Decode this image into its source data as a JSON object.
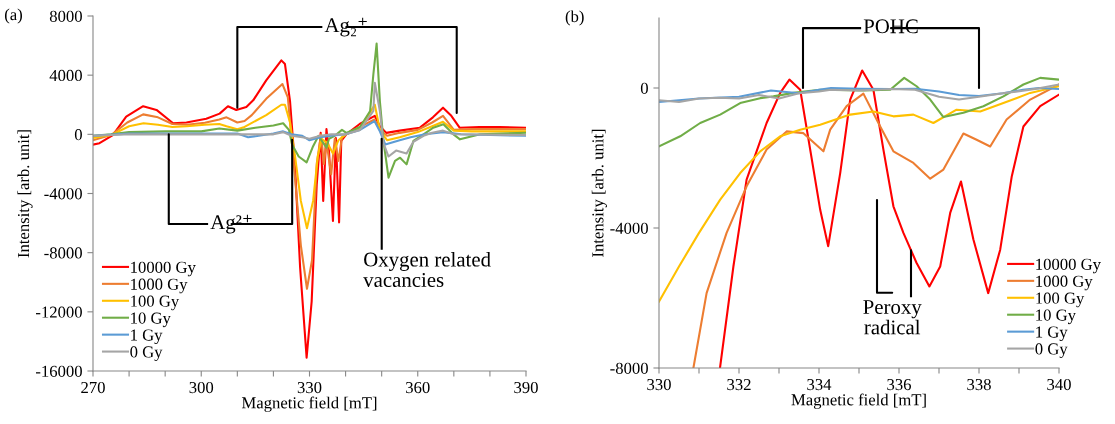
{
  "chart_data": [
    {
      "type": "line",
      "title": "(a)",
      "xlabel": "Magnetic field [mT]",
      "ylabel": "Intensity [arb. unit]",
      "xlim": [
        270,
        390
      ],
      "ylim": [
        -16000,
        8000
      ],
      "xticks": [
        270,
        {
          "value": 280,
          "label": null
        },
        {
          "value": 290,
          "label": null
        },
        300,
        {
          "value": 310,
          "label": null
        },
        {
          "value": 320,
          "label": null
        },
        330,
        {
          "value": 340,
          "label": null
        },
        {
          "value": 350,
          "label": null
        },
        360,
        {
          "value": 370,
          "label": null
        },
        {
          "value": 380,
          "label": null
        },
        390
      ],
      "yticks": [
        -16000,
        -12000,
        -8000,
        -4000,
        0,
        4000,
        8000
      ],
      "grid": false,
      "legend": "bottom left",
      "annotations": [
        {
          "text": "Ag₂⁺",
          "x": 310,
          "y": 1800
        },
        {
          "text": "Ag²⁺",
          "x": 291,
          "y": 0
        },
        {
          "text": "Oxygen related\nvacancies",
          "x": 350,
          "y": -300
        }
      ],
      "series": [
        {
          "name": "10000 Gy",
          "color": "#ff0000",
          "x": [
            270,
            271.8,
            275.5,
            279.2,
            283.9,
            287.6,
            292.2,
            295.9,
            301.4,
            305.1,
            307.4,
            309.7,
            312.5,
            314.4,
            318,
            322.2,
            323.2,
            324.6,
            326.0,
            327.4,
            329.2,
            330.6,
            332.0,
            333.1,
            333.8,
            334.7,
            335.4,
            336.5,
            337.3,
            338.2,
            338.8,
            340.2,
            343.9,
            348.1,
            349.5,
            351.3,
            355.0,
            360.6,
            364.2,
            367.0,
            369.3,
            371.6,
            377.1,
            382.7,
            390
          ],
          "values": [
            -700,
            -600,
            -50,
            1200,
            1900,
            1650,
            750,
            800,
            1050,
            1400,
            1900,
            1650,
            1850,
            2300,
            3650,
            5000,
            4750,
            2250,
            -2250,
            -9000,
            -15100,
            -11300,
            -3400,
            100,
            -4500,
            350,
            -1150,
            -5850,
            -250,
            -5950,
            -450,
            0,
            700,
            1250,
            550,
            100,
            250,
            450,
            1150,
            1800,
            1250,
            450,
            500,
            500,
            450
          ]
        },
        {
          "name": "1000 Gy",
          "color": "#ed7d31",
          "x": [
            270,
            275,
            279.5,
            283.9,
            288,
            292,
            296,
            301,
            305,
            307,
            310,
            312,
            314,
            318,
            322.5,
            324,
            326,
            327.6,
            329.3,
            330.7,
            332,
            333.2,
            334,
            334.7,
            336,
            337,
            338,
            339,
            340.2,
            344,
            348,
            349.5,
            351.5,
            355,
            360,
            364,
            367,
            370,
            375,
            390
          ],
          "values": [
            -400,
            -50,
            800,
            1350,
            1150,
            700,
            650,
            780,
            1000,
            1150,
            800,
            900,
            1300,
            2400,
            3400,
            2500,
            -3000,
            -7500,
            -10440,
            -8500,
            -2000,
            0,
            -2000,
            -500,
            -2700,
            -300,
            -1800,
            -200,
            0,
            500,
            1000,
            300,
            -100,
            100,
            300,
            800,
            1250,
            300,
            350,
            350
          ]
        },
        {
          "name": "100 Gy",
          "color": "#ffc000",
          "x": [
            270,
            275,
            280,
            284,
            288,
            292,
            296,
            301,
            305,
            307,
            310,
            312,
            318,
            322.2,
            323.2,
            324.6,
            326,
            327.6,
            329.3,
            331,
            332.3,
            333.3,
            335,
            336.5,
            338,
            340,
            344,
            348.1,
            349.5,
            351.5,
            355,
            360,
            364,
            367,
            370,
            375,
            390
          ],
          "values": [
            -250,
            -50,
            550,
            750,
            650,
            500,
            550,
            650,
            700,
            550,
            350,
            500,
            1300,
            2000,
            2000,
            800,
            -1500,
            -4500,
            -6350,
            -4500,
            -1500,
            -300,
            -600,
            -1300,
            -400,
            0,
            400,
            2000,
            300,
            -400,
            -200,
            150,
            550,
            850,
            250,
            200,
            200
          ]
        },
        {
          "name": "10 Gy",
          "color": "#70ad47",
          "x": [
            270,
            275,
            280,
            290,
            300,
            305,
            310,
            315,
            320,
            322.7,
            324.3,
            325.2,
            327,
            329.2,
            331,
            332.5,
            334.7,
            335.4,
            337,
            339,
            340.2,
            344,
            346.8,
            347.7,
            348.6,
            349.5,
            350.5,
            351.9,
            353.7,
            355.1,
            356.9,
            358.8,
            361.6,
            364.3,
            367.1,
            369.9,
            371.7,
            377.3,
            390
          ],
          "values": [
            -100,
            0,
            150,
            200,
            200,
            400,
            250,
            450,
            600,
            750,
            300,
            -700,
            -1500,
            -1900,
            -800,
            -100,
            -900,
            -300,
            -100,
            300,
            100,
            500,
            1580,
            4060,
            6130,
            2250,
            -450,
            -2930,
            -1800,
            -1580,
            -2030,
            -450,
            0,
            450,
            680,
            0,
            -340,
            0,
            110
          ]
        },
        {
          "name": "1 Gy",
          "color": "#5b9bd5",
          "x": [
            270,
            280,
            290,
            300,
            310,
            313,
            320,
            322.7,
            325,
            328,
            330,
            333,
            336,
            340,
            344,
            348,
            349.5,
            351,
            355,
            358,
            362,
            367,
            372,
            390
          ],
          "values": [
            -100,
            50,
            50,
            50,
            50,
            -200,
            50,
            200,
            0,
            -100,
            -400,
            -200,
            -100,
            0,
            300,
            900,
            200,
            -680,
            -400,
            -200,
            0,
            150,
            0,
            -100
          ]
        },
        {
          "name": "0 Gy",
          "color": "#a5a5a5",
          "x": [
            270,
            280,
            290,
            300,
            310,
            320,
            322.7,
            325,
            328,
            330,
            333,
            336,
            340,
            344,
            347.7,
            348.1,
            349.5,
            350.5,
            351.9,
            354,
            356.9,
            358.8,
            361.6,
            364,
            367,
            370,
            390
          ],
          "values": [
            -100,
            0,
            0,
            0,
            0,
            0,
            150,
            -100,
            -200,
            -300,
            -100,
            0,
            0,
            300,
            1580,
            3490,
            1580,
            -600,
            -1500,
            -1100,
            -1300,
            -500,
            -100,
            100,
            250,
            0,
            -50
          ]
        }
      ]
    },
    {
      "type": "line",
      "title": "(b)",
      "xlabel": "Magnetic field [mT]",
      "ylabel": "Intensity [arb. unit]",
      "xlim": [
        330,
        340
      ],
      "ylim": [
        -8000,
        2000
      ],
      "xticks": [
        330,
        {
          "value": 331,
          "label": null
        },
        332,
        {
          "value": 333,
          "label": null
        },
        334,
        {
          "value": 335,
          "label": null
        },
        336,
        {
          "value": 337,
          "label": null
        },
        338,
        {
          "value": 339,
          "label": null
        },
        340
      ],
      "yticks": [
        -8000,
        -4000,
        0
      ],
      "grid": false,
      "legend": "bottom right",
      "annotations": [
        {
          "text": "POHC",
          "x": 333.6,
          "y": 0
        },
        {
          "text": "Peroxy\nradical",
          "x": 336.3,
          "y": -4640
        }
      ],
      "series": [
        {
          "name": "10000 Gy",
          "color": "#ff0000",
          "x": [
            331.525,
            331.86,
            332.19,
            332.69,
            333.03,
            333.26,
            333.53,
            333.78,
            334.03,
            334.23,
            334.53,
            334.78,
            335.08,
            335.36,
            335.61,
            335.86,
            336.11,
            336.44,
            336.76,
            337.03,
            337.28,
            337.55,
            337.86,
            338.23,
            338.53,
            338.82,
            339.11,
            339.53,
            340
          ],
          "values": [
            -8000,
            -5100,
            -2620,
            -1000,
            -140,
            240,
            -50,
            -1760,
            -3480,
            -4520,
            -2430,
            -330,
            500,
            -50,
            -1760,
            -3380,
            -4140,
            -5000,
            -5670,
            -5100,
            -3570,
            -2670,
            -4330,
            -5860,
            -4620,
            -2520,
            -1100,
            -520,
            -190
          ]
        },
        {
          "name": "1000 Gy",
          "color": "#ed7d31",
          "x": [
            330.86,
            331.19,
            331.69,
            332.19,
            332.69,
            333.19,
            333.61,
            334.11,
            334.28,
            334.69,
            335.11,
            335.53,
            335.86,
            336.36,
            336.78,
            337.11,
            337.61,
            337.94,
            338.28,
            338.69,
            339.28,
            340
          ],
          "values": [
            -8000,
            -5860,
            -4140,
            -2810,
            -1760,
            -1240,
            -1290,
            -1810,
            -1190,
            -520,
            -160,
            -1100,
            -1810,
            -2140,
            -2590,
            -2330,
            -1300,
            -1480,
            -1670,
            -900,
            -330,
            100
          ]
        },
        {
          "name": "100 Gy",
          "color": "#ffc000",
          "x": [
            330,
            330.5,
            331,
            331.53,
            332.03,
            332.53,
            333.03,
            333.53,
            334.03,
            334.78,
            335.36,
            335.86,
            336.36,
            336.86,
            337.44,
            338.03,
            338.61,
            339.28,
            340
          ],
          "values": [
            -6100,
            -5100,
            -4140,
            -3190,
            -2430,
            -1810,
            -1380,
            -1190,
            -1050,
            -760,
            -670,
            -810,
            -760,
            -1000,
            -620,
            -670,
            -430,
            -140,
            50
          ]
        },
        {
          "name": "10 Gy",
          "color": "#70ad47",
          "x": [
            330,
            330.53,
            331.03,
            331.53,
            332.03,
            332.53,
            332.86,
            333.36,
            334.03,
            335.11,
            335.78,
            336.13,
            336.44,
            336.78,
            337.11,
            337.61,
            338.11,
            338.61,
            339.11,
            339.53,
            340
          ],
          "values": [
            -1670,
            -1380,
            -1000,
            -760,
            -430,
            -290,
            -240,
            -140,
            -50,
            -70,
            -50,
            290,
            50,
            -330,
            -830,
            -710,
            -520,
            -240,
            100,
            290,
            240
          ]
        },
        {
          "name": "1 Gy",
          "color": "#5b9bd5",
          "x": [
            330,
            330.5,
            331,
            332,
            332.8,
            333.5,
            334,
            334.3,
            335,
            335.8,
            336.4,
            337,
            337.5,
            338,
            338.6,
            339.1,
            339.5,
            340
          ],
          "values": [
            -400,
            -350,
            -300,
            -250,
            -70,
            -150,
            -50,
            0,
            -20,
            -30,
            -20,
            -100,
            -200,
            -230,
            -150,
            -50,
            0,
            -30
          ]
        },
        {
          "name": "0 Gy",
          "color": "#a5a5a5",
          "x": [
            330,
            330.5,
            331,
            331.5,
            332,
            332.5,
            333,
            333.5,
            334,
            334.3,
            335,
            335.8,
            336.4,
            337,
            337.5,
            338,
            338.6,
            339.1,
            339.5,
            340
          ],
          "values": [
            -350,
            -400,
            -300,
            -280,
            -300,
            -200,
            -300,
            -150,
            -100,
            -50,
            -70,
            -30,
            -50,
            -250,
            -330,
            -250,
            -150,
            -80,
            -10,
            100
          ]
        }
      ]
    }
  ]
}
